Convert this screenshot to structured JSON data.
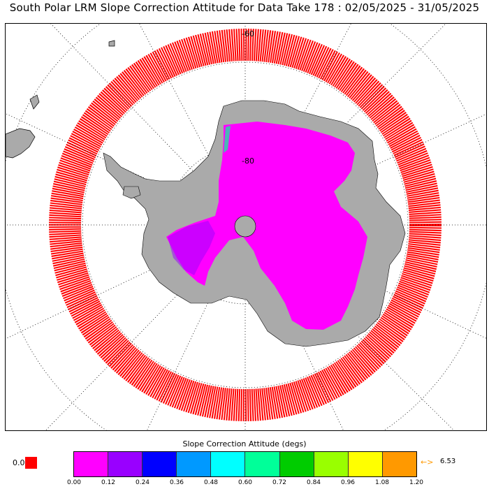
{
  "title": "South Polar LRM Slope Correction Attitude for Data Take 178 : 02/05/2025 - 31/05/2025",
  "map": {
    "lat_labels": [
      "-60",
      "-80"
    ]
  },
  "colorbar": {
    "title": "Slope Correction Attitude (degs)",
    "colors": [
      "#ff00ff",
      "#9900ff",
      "#0000ff",
      "#0099ff",
      "#00ffff",
      "#00ff99",
      "#00cc00",
      "#99ff00",
      "#ffff00",
      "#ff9900"
    ],
    "ticks": [
      "0.00",
      "0.12",
      "0.24",
      "0.36",
      "0.48",
      "0.60",
      "0.72",
      "0.84",
      "0.96",
      "1.08",
      "1.20"
    ],
    "nodata_label": "0.0",
    "max_arrow": "←>",
    "max_value": "6.53"
  }
}
